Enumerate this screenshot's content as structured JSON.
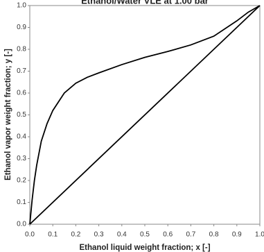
{
  "chart_data": {
    "type": "line",
    "title": "Ethanol/Water VLE at 1.00 bar",
    "x_label": "Ethanol liquid weight fraction; x [-]",
    "y_label": "Ethanol vapor weight fraction; y [-]",
    "series": [
      {
        "color": "#000000",
        "x": [
          0,
          0.01,
          0.02,
          0.03,
          0.05,
          0.075,
          0.1,
          0.15,
          0.2,
          0.25,
          0.3,
          0.4,
          0.5,
          0.6,
          0.7,
          0.8,
          0.9,
          0.95,
          1.0
        ],
        "values": [
          0,
          0.11,
          0.2,
          0.27,
          0.38,
          0.46,
          0.52,
          0.6,
          0.645,
          0.672,
          0.692,
          0.73,
          0.763,
          0.79,
          0.82,
          0.86,
          0.93,
          0.97,
          1.0
        ]
      },
      {
        "color": "#000000",
        "x": [
          0,
          1.0
        ],
        "values": [
          0,
          1.0
        ]
      }
    ],
    "xlim": [
      0,
      1.0
    ],
    "ylim": [
      0,
      1.0
    ],
    "xticks": [
      {
        "value": 0,
        "label": "0.0"
      },
      0.1,
      0.2,
      0.3,
      0.4,
      0.5,
      0.6,
      0.7,
      0.8,
      0.9,
      {
        "value": 1.0,
        "label": "1.0"
      }
    ],
    "yticks": [
      {
        "value": 0,
        "label": "0.0"
      },
      0.1,
      0.2,
      0.3,
      0.4,
      0.5,
      0.6,
      0.7,
      0.8,
      0.9,
      {
        "value": 1.0,
        "label": "1.0"
      }
    ],
    "grid": false
  }
}
